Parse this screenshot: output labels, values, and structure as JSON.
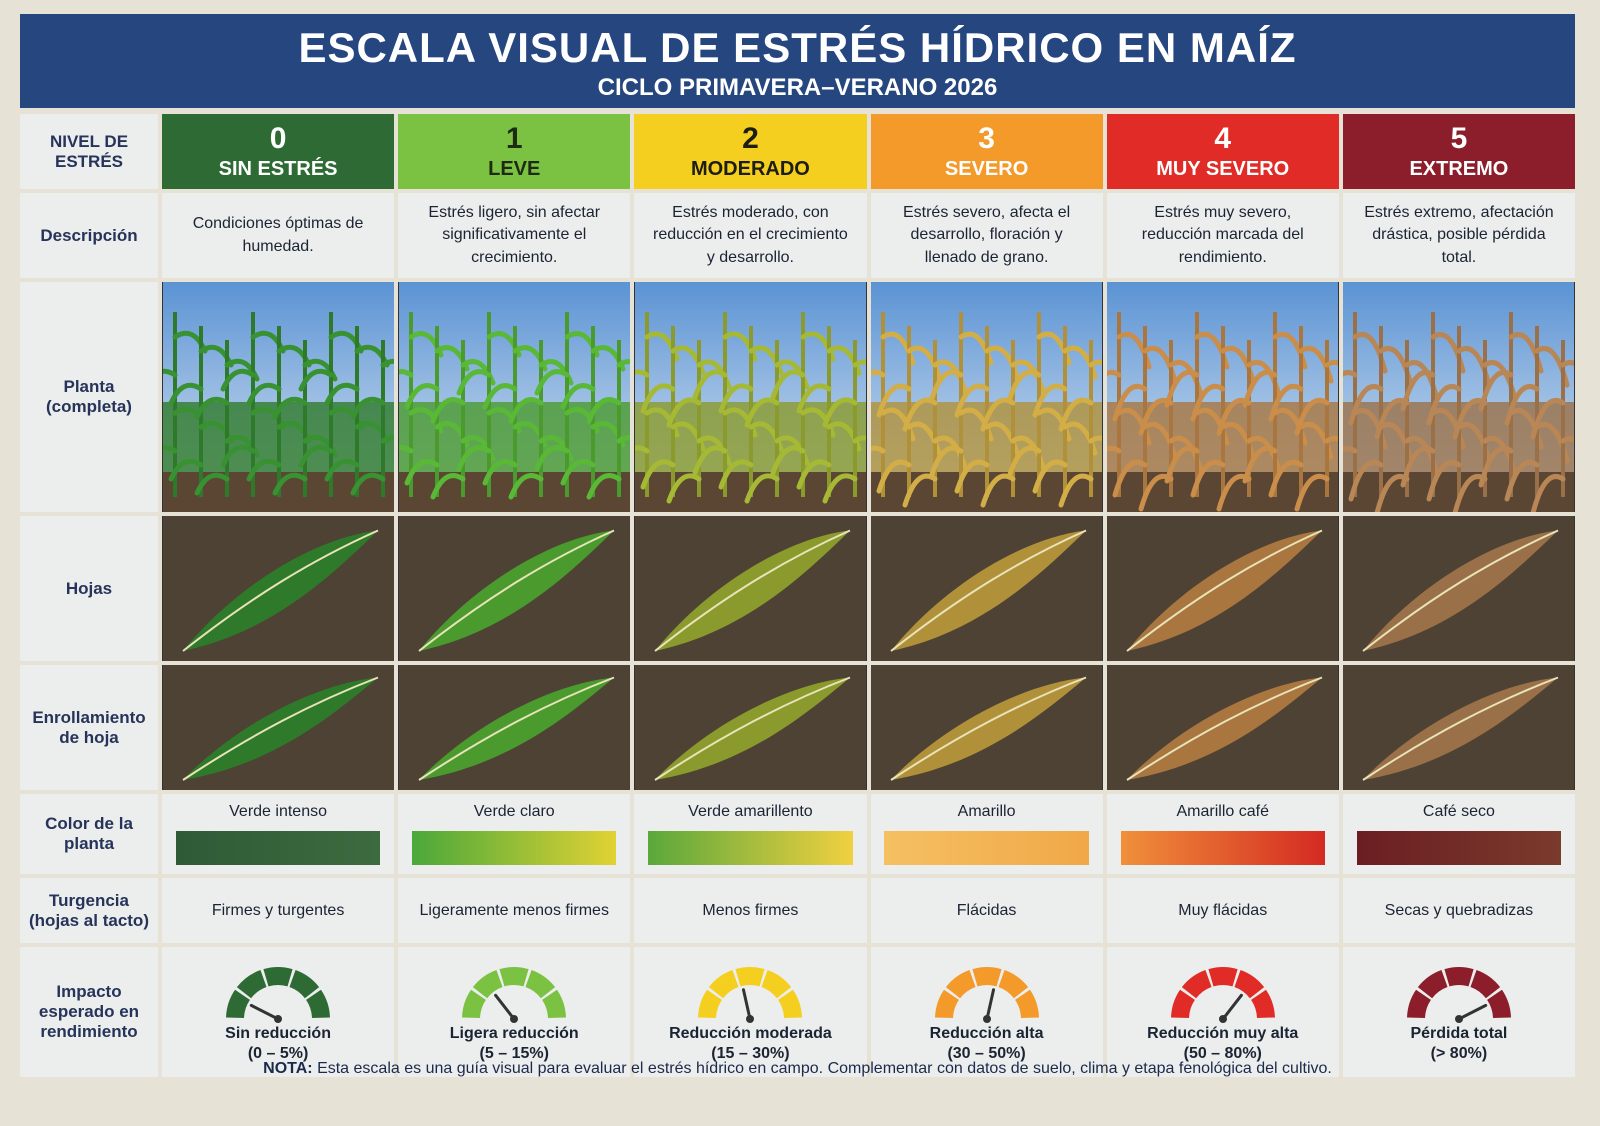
{
  "header": {
    "title": "ESCALA VISUAL DE ESTRÉS HÍDRICO EN MAÍZ",
    "subtitle": "CICLO PRIMAVERA–VERANO 2026"
  },
  "row_labels": [
    "NIVEL DE ESTRÉS",
    "Descripción",
    "Planta (completa)",
    "Hojas",
    "Enrollamiento de hoja",
    "Color de la planta",
    "Turgencia (hojas al tacto)",
    "Impacto esperado en rendimiento"
  ],
  "levels": [
    {
      "number": "0",
      "name": "SIN ESTRÉS",
      "color": "#2e6b34",
      "text_color": "#ffffff",
      "plant_color": "#2f7a2a",
      "description": "Condiciones óptimas de humedad.",
      "color_name": "Verde intenso",
      "bar_colors": [
        "#2f5a36",
        "#3d6b3f"
      ],
      "turgency": "Firmes y turgentes",
      "impact": "Sin reducción",
      "impact_range": "(0 – 5%)"
    },
    {
      "number": "1",
      "name": "LEVE",
      "color": "#7cc242",
      "text_color": "#1d2a14",
      "plant_color": "#4a9a2e",
      "description": "Estrés ligero, sin afectar significativamente el crecimiento.",
      "color_name": "Verde claro",
      "bar_colors": [
        "#4aa83a",
        "#e0d234"
      ],
      "turgency": "Ligeramente menos firmes",
      "impact": "Ligera reducción",
      "impact_range": "(5 – 15%)"
    },
    {
      "number": "2",
      "name": "MODERADO",
      "color": "#f5cf1f",
      "text_color": "#1d1d14",
      "plant_color": "#8a9a2c",
      "description": "Estrés moderado, con reducción en el crecimiento y desarrollo.",
      "color_name": "Verde amarillento",
      "bar_colors": [
        "#5aa83c",
        "#f0d040"
      ],
      "turgency": "Menos firmes",
      "impact": "Reducción moderada",
      "impact_range": "(15 – 30%)"
    },
    {
      "number": "3",
      "name": "SEVERO",
      "color": "#f39a2a",
      "text_color": "#ffffff",
      "plant_color": "#b0913a",
      "description": "Estrés severo, afecta el desarrollo, floración y llenado de grano.",
      "color_name": "Amarillo",
      "bar_colors": [
        "#f5c062",
        "#f0a848"
      ],
      "turgency": "Flácidas",
      "impact": "Reducción alta",
      "impact_range": "(30 – 50%)"
    },
    {
      "number": "4",
      "name": "MUY SEVERO",
      "color": "#e02b26",
      "text_color": "#ffffff",
      "plant_color": "#a8763e",
      "description": "Estrés muy severo, reducción marcada del rendimiento.",
      "color_name": "Amarillo café",
      "bar_colors": [
        "#f0903a",
        "#d42a22"
      ],
      "turgency": "Muy flácidas",
      "impact": "Reducción muy alta",
      "impact_range": "(50 – 80%)"
    },
    {
      "number": "5",
      "name": "EXTREMO",
      "color": "#8c1d2a",
      "text_color": "#ffffff",
      "plant_color": "#9a7048",
      "description": "Estrés extremo, afectación drástica, posible pérdida total.",
      "color_name": "Café seco",
      "bar_colors": [
        "#6b1e22",
        "#7a3a2c"
      ],
      "turgency": "Secas y quebradizas",
      "impact": "Pérdida total",
      "impact_range": "(> 80%)"
    }
  ],
  "note": {
    "label": "NOTA:",
    "text": "Esta escala es una guía visual para evaluar el estrés hídrico en campo. Complementar con datos de suelo, clima y etapa fenológica del cultivo."
  }
}
